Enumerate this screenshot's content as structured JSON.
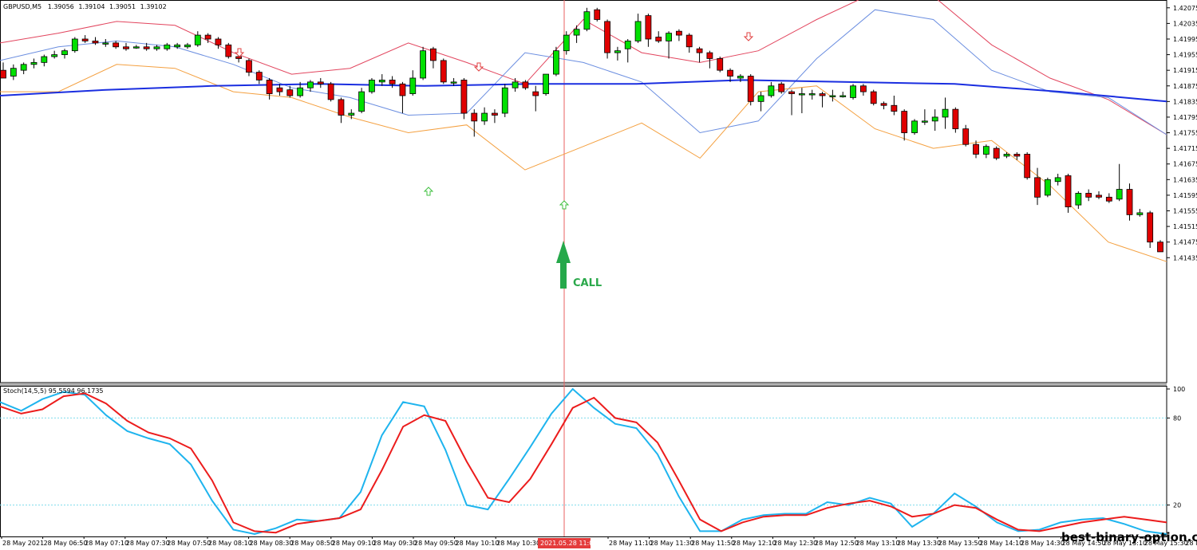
{
  "header": {
    "symbol_label": "GBPUSD,M5",
    "ohlc": [
      "1.39056",
      "1.39104",
      "1.39051",
      "1.39102"
    ]
  },
  "stoch_label": "Stoch(14,5,5) 95.5594 96.1735",
  "watermark": "best-binary-option.com",
  "signal_label": "CALL",
  "cursor_time_label": "2021.05.28 11:00",
  "colors": {
    "bull": "#00e000",
    "bear": "#e00000",
    "bb_upper": "#e2455e",
    "bb_mid": "#6b8ee0",
    "bb_lower": "#f4a040",
    "ma": "#1a2ee0",
    "stoch_main": "#1eb4ee",
    "stoch_signal": "#ec1c1c",
    "level": "#7fdcec",
    "cursor": "#e86060",
    "call_arrow": "#25a84a"
  },
  "chart_data": [
    {
      "type": "candlestick",
      "title": "GBPUSD,M5",
      "ylim": [
        1.41115,
        1.42095
      ],
      "y_ticks": [
        "1.42075",
        "1.42035",
        "1.41995",
        "1.41955",
        "1.41915",
        "1.41875",
        "1.41835",
        "1.41795",
        "1.41755",
        "1.41715",
        "1.41675",
        "1.41635",
        "1.41595",
        "1.41555",
        "1.41515",
        "1.41475",
        "1.41435"
      ],
      "x_ticks": [
        "28 May 2021",
        "28 May 06:50",
        "28 May 07:10",
        "28 May 07:30",
        "28 May 07:50",
        "28 May 08:10",
        "28 May 08:30",
        "28 May 08:50",
        "28 May 09:10",
        "28 May 09:30",
        "28 May 09:50",
        "28 May 10:10",
        "28 May 10:30",
        "28 May 11:10",
        "28 May 11:30",
        "28 May 11:50",
        "28 May 12:10",
        "28 May 12:30",
        "28 May 12:50",
        "28 May 13:10",
        "28 May 13:30",
        "28 May 13:50",
        "28 May 14:10",
        "28 May 14:30",
        "28 May 14:50",
        "28 May 15:10",
        "28 May 15:30",
        "28 May 15:5"
      ],
      "candles": [
        {
          "o": 1.41915,
          "h": 1.41935,
          "l": 1.41895,
          "c": 1.41895
        },
        {
          "o": 1.419,
          "h": 1.4193,
          "l": 1.4189,
          "c": 1.4192
        },
        {
          "o": 1.41915,
          "h": 1.41935,
          "l": 1.41905,
          "c": 1.4193
        },
        {
          "o": 1.4193,
          "h": 1.41945,
          "l": 1.4192,
          "c": 1.41935
        },
        {
          "o": 1.41935,
          "h": 1.41955,
          "l": 1.41925,
          "c": 1.4195
        },
        {
          "o": 1.4195,
          "h": 1.41965,
          "l": 1.41945,
          "c": 1.41955
        },
        {
          "o": 1.41955,
          "h": 1.4197,
          "l": 1.41945,
          "c": 1.41965
        },
        {
          "o": 1.41965,
          "h": 1.42,
          "l": 1.4196,
          "c": 1.41995
        },
        {
          "o": 1.41995,
          "h": 1.42005,
          "l": 1.41985,
          "c": 1.4199
        },
        {
          "o": 1.4199,
          "h": 1.42,
          "l": 1.4198,
          "c": 1.41985
        },
        {
          "o": 1.41985,
          "h": 1.41995,
          "l": 1.41975,
          "c": 1.41985
        },
        {
          "o": 1.41985,
          "h": 1.4199,
          "l": 1.4197,
          "c": 1.41975
        },
        {
          "o": 1.41975,
          "h": 1.41985,
          "l": 1.41965,
          "c": 1.4197
        },
        {
          "o": 1.41975,
          "h": 1.4198,
          "l": 1.4197,
          "c": 1.41975
        },
        {
          "o": 1.41975,
          "h": 1.41985,
          "l": 1.41965,
          "c": 1.4197
        },
        {
          "o": 1.4197,
          "h": 1.4198,
          "l": 1.41965,
          "c": 1.41975
        },
        {
          "o": 1.4197,
          "h": 1.41985,
          "l": 1.41965,
          "c": 1.4198
        },
        {
          "o": 1.41975,
          "h": 1.41985,
          "l": 1.4197,
          "c": 1.4198
        },
        {
          "o": 1.41975,
          "h": 1.41985,
          "l": 1.4197,
          "c": 1.4198
        },
        {
          "o": 1.4198,
          "h": 1.42015,
          "l": 1.41975,
          "c": 1.42005
        },
        {
          "o": 1.42005,
          "h": 1.4201,
          "l": 1.41985,
          "c": 1.41995
        },
        {
          "o": 1.41995,
          "h": 1.42,
          "l": 1.4197,
          "c": 1.4198
        },
        {
          "o": 1.4198,
          "h": 1.41985,
          "l": 1.41945,
          "c": 1.4195
        },
        {
          "o": 1.4195,
          "h": 1.41955,
          "l": 1.41935,
          "c": 1.41945
        },
        {
          "o": 1.4194,
          "h": 1.41945,
          "l": 1.419,
          "c": 1.4191
        },
        {
          "o": 1.4191,
          "h": 1.41915,
          "l": 1.4188,
          "c": 1.4189
        },
        {
          "o": 1.4189,
          "h": 1.41895,
          "l": 1.4184,
          "c": 1.41855
        },
        {
          "o": 1.4187,
          "h": 1.4188,
          "l": 1.4185,
          "c": 1.4186
        },
        {
          "o": 1.41865,
          "h": 1.41875,
          "l": 1.41845,
          "c": 1.4185
        },
        {
          "o": 1.4185,
          "h": 1.41885,
          "l": 1.41845,
          "c": 1.4187
        },
        {
          "o": 1.4187,
          "h": 1.4189,
          "l": 1.4186,
          "c": 1.41885
        },
        {
          "o": 1.41885,
          "h": 1.41895,
          "l": 1.4187,
          "c": 1.4188
        },
        {
          "o": 1.4188,
          "h": 1.41885,
          "l": 1.41835,
          "c": 1.4184
        },
        {
          "o": 1.4184,
          "h": 1.41845,
          "l": 1.4178,
          "c": 1.418
        },
        {
          "o": 1.418,
          "h": 1.41815,
          "l": 1.4179,
          "c": 1.41805
        },
        {
          "o": 1.4181,
          "h": 1.4187,
          "l": 1.41805,
          "c": 1.4186
        },
        {
          "o": 1.4186,
          "h": 1.41895,
          "l": 1.41855,
          "c": 1.4189
        },
        {
          "o": 1.41885,
          "h": 1.41905,
          "l": 1.41875,
          "c": 1.4189
        },
        {
          "o": 1.4189,
          "h": 1.419,
          "l": 1.4187,
          "c": 1.4188
        },
        {
          "o": 1.4188,
          "h": 1.41885,
          "l": 1.41805,
          "c": 1.4185
        },
        {
          "o": 1.41855,
          "h": 1.41915,
          "l": 1.4185,
          "c": 1.41895
        },
        {
          "o": 1.41895,
          "h": 1.41975,
          "l": 1.4189,
          "c": 1.41965
        },
        {
          "o": 1.4197,
          "h": 1.41975,
          "l": 1.4192,
          "c": 1.4194
        },
        {
          "o": 1.4194,
          "h": 1.41945,
          "l": 1.4188,
          "c": 1.41885
        },
        {
          "o": 1.41885,
          "h": 1.41895,
          "l": 1.41875,
          "c": 1.41885
        },
        {
          "o": 1.4189,
          "h": 1.41895,
          "l": 1.4179,
          "c": 1.41805
        },
        {
          "o": 1.41805,
          "h": 1.41815,
          "l": 1.41745,
          "c": 1.41785
        },
        {
          "o": 1.41785,
          "h": 1.4182,
          "l": 1.41775,
          "c": 1.41805
        },
        {
          "o": 1.41805,
          "h": 1.41815,
          "l": 1.4178,
          "c": 1.418
        },
        {
          "o": 1.41805,
          "h": 1.4188,
          "l": 1.41795,
          "c": 1.4187
        },
        {
          "o": 1.4187,
          "h": 1.41895,
          "l": 1.4186,
          "c": 1.41885
        },
        {
          "o": 1.41885,
          "h": 1.4189,
          "l": 1.41865,
          "c": 1.4187
        },
        {
          "o": 1.4186,
          "h": 1.41875,
          "l": 1.4181,
          "c": 1.4185
        },
        {
          "o": 1.41855,
          "h": 1.41905,
          "l": 1.4185,
          "c": 1.41905
        },
        {
          "o": 1.41905,
          "h": 1.41975,
          "l": 1.419,
          "c": 1.41965
        },
        {
          "o": 1.41965,
          "h": 1.42015,
          "l": 1.41955,
          "c": 1.42005
        },
        {
          "o": 1.42005,
          "h": 1.4203,
          "l": 1.41985,
          "c": 1.4202
        },
        {
          "o": 1.4202,
          "h": 1.42075,
          "l": 1.42015,
          "c": 1.42065
        },
        {
          "o": 1.4207,
          "h": 1.42075,
          "l": 1.4204,
          "c": 1.42045
        },
        {
          "o": 1.4204,
          "h": 1.42045,
          "l": 1.41945,
          "c": 1.4196
        },
        {
          "o": 1.4196,
          "h": 1.41975,
          "l": 1.4194,
          "c": 1.41965
        },
        {
          "o": 1.4197,
          "h": 1.41995,
          "l": 1.41935,
          "c": 1.4199
        },
        {
          "o": 1.4199,
          "h": 1.4206,
          "l": 1.41985,
          "c": 1.4204
        },
        {
          "o": 1.42055,
          "h": 1.4206,
          "l": 1.41975,
          "c": 1.41995
        },
        {
          "o": 1.42,
          "h": 1.42015,
          "l": 1.41985,
          "c": 1.4199
        },
        {
          "o": 1.4199,
          "h": 1.42015,
          "l": 1.41945,
          "c": 1.4201
        },
        {
          "o": 1.42015,
          "h": 1.4202,
          "l": 1.4199,
          "c": 1.42005
        },
        {
          "o": 1.42005,
          "h": 1.4201,
          "l": 1.4196,
          "c": 1.41975
        },
        {
          "o": 1.4197,
          "h": 1.41975,
          "l": 1.41935,
          "c": 1.4196
        },
        {
          "o": 1.4196,
          "h": 1.41965,
          "l": 1.4192,
          "c": 1.41945
        },
        {
          "o": 1.41945,
          "h": 1.4195,
          "l": 1.4191,
          "c": 1.41915
        },
        {
          "o": 1.41915,
          "h": 1.4192,
          "l": 1.41885,
          "c": 1.419
        },
        {
          "o": 1.41895,
          "h": 1.41905,
          "l": 1.41885,
          "c": 1.419
        },
        {
          "o": 1.419,
          "h": 1.41905,
          "l": 1.41825,
          "c": 1.41835
        },
        {
          "o": 1.41835,
          "h": 1.4186,
          "l": 1.4181,
          "c": 1.4185
        },
        {
          "o": 1.4185,
          "h": 1.41885,
          "l": 1.41845,
          "c": 1.41875
        },
        {
          "o": 1.4188,
          "h": 1.41885,
          "l": 1.41855,
          "c": 1.4186
        },
        {
          "o": 1.4186,
          "h": 1.41865,
          "l": 1.418,
          "c": 1.41855
        },
        {
          "o": 1.41855,
          "h": 1.4187,
          "l": 1.41805,
          "c": 1.41855
        },
        {
          "o": 1.41855,
          "h": 1.41865,
          "l": 1.4184,
          "c": 1.41855
        },
        {
          "o": 1.41855,
          "h": 1.4186,
          "l": 1.4182,
          "c": 1.4185
        },
        {
          "o": 1.4185,
          "h": 1.41865,
          "l": 1.41835,
          "c": 1.4185
        },
        {
          "o": 1.4185,
          "h": 1.4186,
          "l": 1.41845,
          "c": 1.4185
        },
        {
          "o": 1.41845,
          "h": 1.4188,
          "l": 1.4184,
          "c": 1.41875
        },
        {
          "o": 1.41875,
          "h": 1.4188,
          "l": 1.4185,
          "c": 1.4186
        },
        {
          "o": 1.4186,
          "h": 1.41865,
          "l": 1.41825,
          "c": 1.4183
        },
        {
          "o": 1.4183,
          "h": 1.41835,
          "l": 1.41815,
          "c": 1.41825
        },
        {
          "o": 1.41825,
          "h": 1.4185,
          "l": 1.418,
          "c": 1.4181
        },
        {
          "o": 1.4181,
          "h": 1.41815,
          "l": 1.41735,
          "c": 1.41755
        },
        {
          "o": 1.41755,
          "h": 1.4179,
          "l": 1.4175,
          "c": 1.41785
        },
        {
          "o": 1.41785,
          "h": 1.41815,
          "l": 1.41775,
          "c": 1.41785
        },
        {
          "o": 1.41785,
          "h": 1.41815,
          "l": 1.4176,
          "c": 1.41795
        },
        {
          "o": 1.41795,
          "h": 1.41845,
          "l": 1.41765,
          "c": 1.41815
        },
        {
          "o": 1.41815,
          "h": 1.4182,
          "l": 1.41755,
          "c": 1.41765
        },
        {
          "o": 1.41765,
          "h": 1.41775,
          "l": 1.4172,
          "c": 1.41725
        },
        {
          "o": 1.41725,
          "h": 1.41735,
          "l": 1.4169,
          "c": 1.417
        },
        {
          "o": 1.417,
          "h": 1.41725,
          "l": 1.4169,
          "c": 1.4172
        },
        {
          "o": 1.41715,
          "h": 1.4172,
          "l": 1.41685,
          "c": 1.4169
        },
        {
          "o": 1.41695,
          "h": 1.41705,
          "l": 1.4169,
          "c": 1.417
        },
        {
          "o": 1.417,
          "h": 1.41705,
          "l": 1.41685,
          "c": 1.41695
        },
        {
          "o": 1.417,
          "h": 1.41705,
          "l": 1.41635,
          "c": 1.4164
        },
        {
          "o": 1.4164,
          "h": 1.41665,
          "l": 1.4157,
          "c": 1.4159
        },
        {
          "o": 1.41595,
          "h": 1.4164,
          "l": 1.4159,
          "c": 1.41635
        },
        {
          "o": 1.4163,
          "h": 1.4165,
          "l": 1.4162,
          "c": 1.4164
        },
        {
          "o": 1.41645,
          "h": 1.4165,
          "l": 1.4155,
          "c": 1.41565
        },
        {
          "o": 1.4157,
          "h": 1.41605,
          "l": 1.4156,
          "c": 1.416
        },
        {
          "o": 1.416,
          "h": 1.4161,
          "l": 1.4158,
          "c": 1.4159
        },
        {
          "o": 1.41595,
          "h": 1.41605,
          "l": 1.41585,
          "c": 1.4159
        },
        {
          "o": 1.4159,
          "h": 1.416,
          "l": 1.41575,
          "c": 1.4158
        },
        {
          "o": 1.41585,
          "h": 1.41675,
          "l": 1.4158,
          "c": 1.4161
        },
        {
          "o": 1.4161,
          "h": 1.41625,
          "l": 1.4153,
          "c": 1.41545
        },
        {
          "o": 1.41545,
          "h": 1.4156,
          "l": 1.4154,
          "c": 1.4155
        },
        {
          "o": 1.4155,
          "h": 1.41555,
          "l": 1.4146,
          "c": 1.41475
        },
        {
          "o": 1.41475,
          "h": 1.4148,
          "l": 1.4145,
          "c": 1.4145
        }
      ],
      "indicators": {
        "bollinger_upper": [
          1.41985,
          1.4201,
          1.4204,
          1.4203,
          1.4196,
          1.41905,
          1.4192,
          1.41985,
          1.41935,
          1.4188,
          1.42045,
          1.4196,
          1.41935,
          1.41965,
          1.42045,
          1.42115,
          1.42105,
          1.4198,
          1.41895,
          1.4184,
          1.4175
        ],
        "bollinger_middle": [
          1.4194,
          1.41975,
          1.4199,
          1.41975,
          1.4193,
          1.4187,
          1.41845,
          1.418,
          1.41805,
          1.4196,
          1.41935,
          1.41885,
          1.41755,
          1.41785,
          1.41945,
          1.4207,
          1.42045,
          1.41915,
          1.4186,
          1.41845,
          1.4175
        ],
        "bollinger_lower": [
          1.4186,
          1.4186,
          1.4193,
          1.4192,
          1.4186,
          1.41845,
          1.41795,
          1.41755,
          1.41775,
          1.4166,
          1.4172,
          1.4178,
          1.4169,
          1.4186,
          1.41875,
          1.41765,
          1.41715,
          1.41735,
          1.4162,
          1.41475,
          1.41425
        ],
        "moving_average": [
          1.4185,
          1.41865,
          1.41875,
          1.4188,
          1.41875,
          1.4188,
          1.4188,
          1.4189,
          1.41885,
          1.4188,
          1.4186,
          1.41835
        ]
      },
      "signals": [
        {
          "type": "buy",
          "label": "CALL",
          "time": "2021.05.28 11:00"
        }
      ]
    },
    {
      "type": "line",
      "title": "Stoch(14,5,5) 95.5594 96.1735",
      "ylim": [
        0,
        100
      ],
      "y_ticks": [
        "100",
        "80",
        "20"
      ],
      "levels": [
        80,
        20
      ],
      "series": [
        {
          "values": [
            91,
            85,
            93,
            98,
            96,
            82,
            71,
            66,
            62,
            48,
            23,
            3,
            0,
            4,
            10,
            9,
            11,
            29,
            68,
            91,
            88,
            58,
            20,
            17,
            38,
            60,
            83,
            100,
            87,
            76,
            73,
            55,
            26,
            2,
            2,
            10,
            13,
            14,
            14,
            22,
            20,
            25,
            21,
            5,
            14,
            28,
            19,
            8,
            2,
            3,
            8,
            10,
            11,
            7,
            2,
            0
          ]
        },
        {
          "values": [
            88,
            83,
            86,
            95,
            97,
            90,
            78,
            70,
            66,
            59,
            37,
            8,
            2,
            1,
            7,
            9,
            11,
            17,
            44,
            74,
            82,
            78,
            50,
            25,
            22,
            38,
            62,
            87,
            94,
            80,
            77,
            63,
            37,
            10,
            2,
            8,
            12,
            13,
            13,
            18,
            21,
            23,
            19,
            12,
            14,
            20,
            18,
            10,
            3,
            2,
            5,
            8,
            10,
            12,
            10,
            8
          ]
        }
      ]
    }
  ]
}
